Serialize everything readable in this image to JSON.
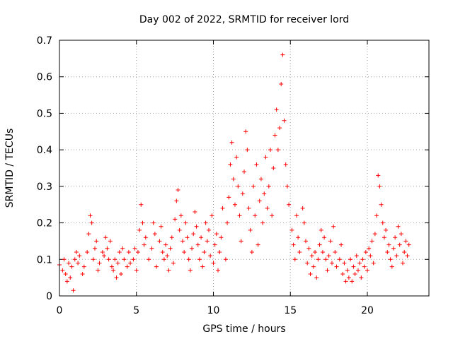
{
  "chart_data": {
    "type": "scatter",
    "title": "Day 002 of 2022, SRMTID for receiver lord",
    "xlabel": "GPS time / hours",
    "ylabel": "SRMTID / TECUs",
    "xlim": [
      0,
      24
    ],
    "ylim": [
      0,
      0.7
    ],
    "xticks": [
      0,
      5,
      10,
      15,
      20
    ],
    "yticks": [
      0,
      0.1,
      0.2,
      0.3,
      0.4,
      0.5,
      0.6,
      0.7
    ],
    "xtick_labels": [
      "0",
      "5",
      "10",
      "15",
      "20"
    ],
    "ytick_labels": [
      "0",
      "0.1",
      "0.2",
      "0.3",
      "0.4",
      "0.5",
      "0.6",
      "0.7"
    ],
    "grid": true,
    "marker": "+",
    "color": "#ff0000",
    "series": [
      {
        "name": "SRMTID",
        "points": [
          [
            0.0,
            0.085
          ],
          [
            0.2,
            0.07
          ],
          [
            0.3,
            0.1
          ],
          [
            0.4,
            0.06
          ],
          [
            0.5,
            0.04
          ],
          [
            0.6,
            0.09
          ],
          [
            0.7,
            0.05
          ],
          [
            0.8,
            0.08
          ],
          [
            0.9,
            0.015
          ],
          [
            1.0,
            0.1
          ],
          [
            1.1,
            0.12
          ],
          [
            1.2,
            0.09
          ],
          [
            1.3,
            0.11
          ],
          [
            1.5,
            0.06
          ],
          [
            1.6,
            0.08
          ],
          [
            1.8,
            0.12
          ],
          [
            1.9,
            0.17
          ],
          [
            2.0,
            0.22
          ],
          [
            2.1,
            0.2
          ],
          [
            2.2,
            0.1
          ],
          [
            2.3,
            0.13
          ],
          [
            2.4,
            0.15
          ],
          [
            2.5,
            0.07
          ],
          [
            2.6,
            0.09
          ],
          [
            2.8,
            0.12
          ],
          [
            2.9,
            0.11
          ],
          [
            3.0,
            0.16
          ],
          [
            3.1,
            0.13
          ],
          [
            3.2,
            0.1
          ],
          [
            3.3,
            0.15
          ],
          [
            3.4,
            0.08
          ],
          [
            3.5,
            0.07
          ],
          [
            3.6,
            0.1
          ],
          [
            3.7,
            0.05
          ],
          [
            3.8,
            0.09
          ],
          [
            3.9,
            0.12
          ],
          [
            4.0,
            0.06
          ],
          [
            4.1,
            0.13
          ],
          [
            4.2,
            0.1
          ],
          [
            4.4,
            0.08
          ],
          [
            4.5,
            0.12
          ],
          [
            4.6,
            0.09
          ],
          [
            4.8,
            0.1
          ],
          [
            4.9,
            0.13
          ],
          [
            5.0,
            0.07
          ],
          [
            5.1,
            0.12
          ],
          [
            5.2,
            0.18
          ],
          [
            5.3,
            0.25
          ],
          [
            5.4,
            0.2
          ],
          [
            5.5,
            0.14
          ],
          [
            5.6,
            0.16
          ],
          [
            5.8,
            0.1
          ],
          [
            6.0,
            0.13
          ],
          [
            6.1,
            0.2
          ],
          [
            6.2,
            0.17
          ],
          [
            6.3,
            0.08
          ],
          [
            6.5,
            0.15
          ],
          [
            6.6,
            0.19
          ],
          [
            6.7,
            0.12
          ],
          [
            6.8,
            0.1
          ],
          [
            6.9,
            0.14
          ],
          [
            7.0,
            0.11
          ],
          [
            7.1,
            0.07
          ],
          [
            7.2,
            0.13
          ],
          [
            7.3,
            0.16
          ],
          [
            7.4,
            0.09
          ],
          [
            7.5,
            0.21
          ],
          [
            7.6,
            0.26
          ],
          [
            7.7,
            0.29
          ],
          [
            7.8,
            0.18
          ],
          [
            7.9,
            0.22
          ],
          [
            8.0,
            0.15
          ],
          [
            8.1,
            0.12
          ],
          [
            8.2,
            0.2
          ],
          [
            8.3,
            0.16
          ],
          [
            8.4,
            0.1
          ],
          [
            8.5,
            0.07
          ],
          [
            8.6,
            0.13
          ],
          [
            8.7,
            0.17
          ],
          [
            8.8,
            0.23
          ],
          [
            8.9,
            0.19
          ],
          [
            9.0,
            0.14
          ],
          [
            9.1,
            0.1
          ],
          [
            9.2,
            0.16
          ],
          [
            9.3,
            0.08
          ],
          [
            9.4,
            0.12
          ],
          [
            9.5,
            0.2
          ],
          [
            9.6,
            0.15
          ],
          [
            9.7,
            0.18
          ],
          [
            9.8,
            0.11
          ],
          [
            9.9,
            0.22
          ],
          [
            10.0,
            0.09
          ],
          [
            10.1,
            0.14
          ],
          [
            10.2,
            0.17
          ],
          [
            10.3,
            0.07
          ],
          [
            10.4,
            0.12
          ],
          [
            10.5,
            0.16
          ],
          [
            10.6,
            0.24
          ],
          [
            10.8,
            0.1
          ],
          [
            10.9,
            0.2
          ],
          [
            11.0,
            0.27
          ],
          [
            11.1,
            0.36
          ],
          [
            11.2,
            0.42
          ],
          [
            11.3,
            0.32
          ],
          [
            11.4,
            0.25
          ],
          [
            11.5,
            0.38
          ],
          [
            11.6,
            0.3
          ],
          [
            11.7,
            0.22
          ],
          [
            11.8,
            0.15
          ],
          [
            11.9,
            0.28
          ],
          [
            12.0,
            0.34
          ],
          [
            12.1,
            0.45
          ],
          [
            12.2,
            0.4
          ],
          [
            12.3,
            0.24
          ],
          [
            12.4,
            0.18
          ],
          [
            12.5,
            0.12
          ],
          [
            12.6,
            0.3
          ],
          [
            12.7,
            0.22
          ],
          [
            12.8,
            0.36
          ],
          [
            12.9,
            0.14
          ],
          [
            13.0,
            0.26
          ],
          [
            13.1,
            0.32
          ],
          [
            13.2,
            0.2
          ],
          [
            13.3,
            0.28
          ],
          [
            13.4,
            0.38
          ],
          [
            13.5,
            0.24
          ],
          [
            13.6,
            0.3
          ],
          [
            13.7,
            0.4
          ],
          [
            13.8,
            0.22
          ],
          [
            13.9,
            0.35
          ],
          [
            14.0,
            0.44
          ],
          [
            14.1,
            0.51
          ],
          [
            14.2,
            0.4
          ],
          [
            14.3,
            0.46
          ],
          [
            14.4,
            0.58
          ],
          [
            14.5,
            0.66
          ],
          [
            14.6,
            0.48
          ],
          [
            14.7,
            0.36
          ],
          [
            14.8,
            0.3
          ],
          [
            14.9,
            0.25
          ],
          [
            15.1,
            0.18
          ],
          [
            15.2,
            0.14
          ],
          [
            15.3,
            0.1
          ],
          [
            15.4,
            0.22
          ],
          [
            15.5,
            0.16
          ],
          [
            15.6,
            0.12
          ],
          [
            15.8,
            0.24
          ],
          [
            15.9,
            0.2
          ],
          [
            16.0,
            0.15
          ],
          [
            16.1,
            0.09
          ],
          [
            16.2,
            0.13
          ],
          [
            16.3,
            0.06
          ],
          [
            16.4,
            0.11
          ],
          [
            16.5,
            0.08
          ],
          [
            16.6,
            0.12
          ],
          [
            16.7,
            0.05
          ],
          [
            16.8,
            0.1
          ],
          [
            16.9,
            0.14
          ],
          [
            17.0,
            0.18
          ],
          [
            17.1,
            0.12
          ],
          [
            17.2,
            0.16
          ],
          [
            17.3,
            0.1
          ],
          [
            17.4,
            0.07
          ],
          [
            17.5,
            0.11
          ],
          [
            17.6,
            0.15
          ],
          [
            17.7,
            0.09
          ],
          [
            17.8,
            0.19
          ],
          [
            17.9,
            0.12
          ],
          [
            18.0,
            0.08
          ],
          [
            18.2,
            0.1
          ],
          [
            18.3,
            0.14
          ],
          [
            18.4,
            0.06
          ],
          [
            18.5,
            0.09
          ],
          [
            18.6,
            0.04
          ],
          [
            18.7,
            0.07
          ],
          [
            18.8,
            0.05
          ],
          [
            18.9,
            0.1
          ],
          [
            19.0,
            0.04
          ],
          [
            19.1,
            0.08
          ],
          [
            19.2,
            0.06
          ],
          [
            19.3,
            0.11
          ],
          [
            19.4,
            0.07
          ],
          [
            19.5,
            0.09
          ],
          [
            19.6,
            0.05
          ],
          [
            19.7,
            0.1
          ],
          [
            19.8,
            0.08
          ],
          [
            19.9,
            0.12
          ],
          [
            20.0,
            0.07
          ],
          [
            20.1,
            0.13
          ],
          [
            20.2,
            0.11
          ],
          [
            20.3,
            0.15
          ],
          [
            20.4,
            0.09
          ],
          [
            20.5,
            0.17
          ],
          [
            20.6,
            0.22
          ],
          [
            20.7,
            0.33
          ],
          [
            20.8,
            0.3
          ],
          [
            20.9,
            0.25
          ],
          [
            21.0,
            0.2
          ],
          [
            21.1,
            0.16
          ],
          [
            21.2,
            0.18
          ],
          [
            21.3,
            0.12
          ],
          [
            21.4,
            0.14
          ],
          [
            21.5,
            0.1
          ],
          [
            21.6,
            0.08
          ],
          [
            21.7,
            0.13
          ],
          [
            21.8,
            0.16
          ],
          [
            21.9,
            0.11
          ],
          [
            22.0,
            0.19
          ],
          [
            22.1,
            0.14
          ],
          [
            22.2,
            0.17
          ],
          [
            22.3,
            0.09
          ],
          [
            22.4,
            0.12
          ],
          [
            22.5,
            0.15
          ],
          [
            22.6,
            0.11
          ],
          [
            22.7,
            0.14
          ]
        ]
      }
    ]
  }
}
